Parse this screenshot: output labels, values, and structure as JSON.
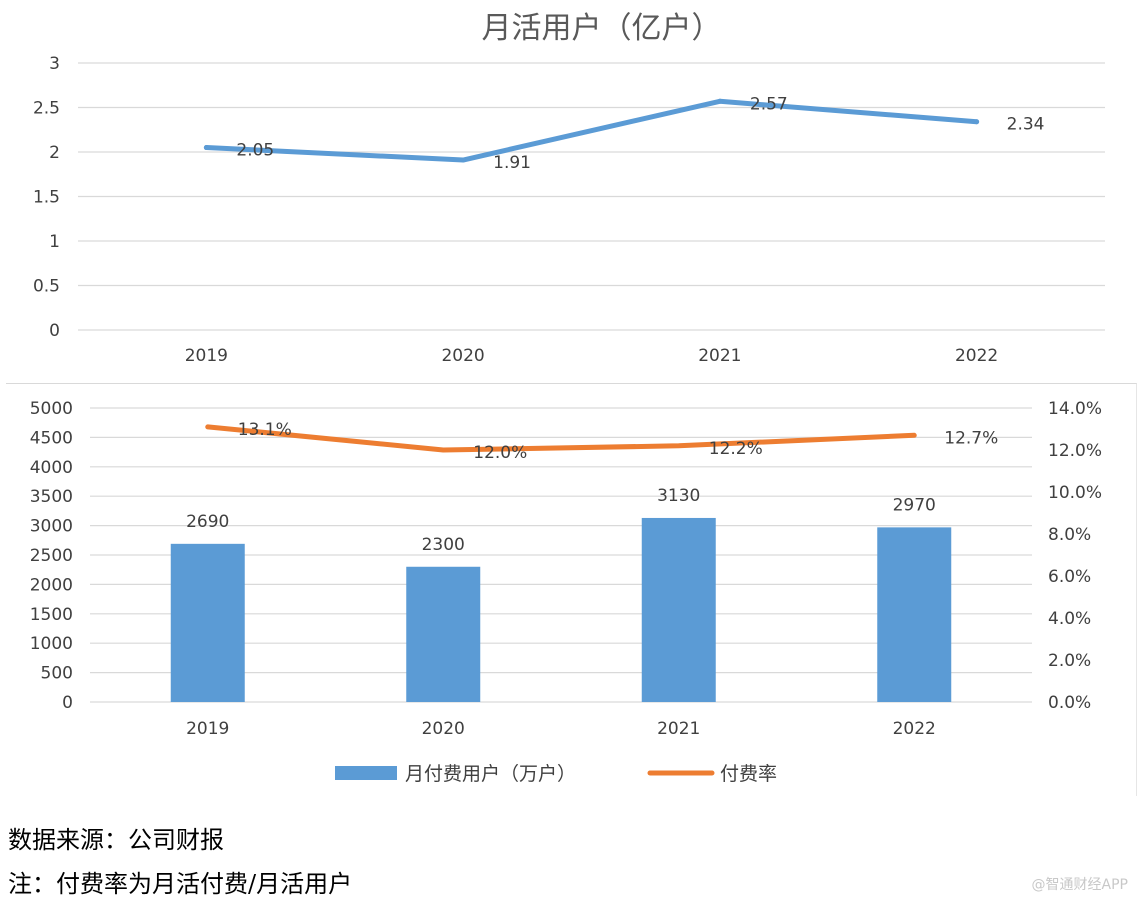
{
  "chart_data": [
    {
      "type": "line",
      "title": "月活用户（亿户）",
      "categories": [
        "2019",
        "2020",
        "2021",
        "2022"
      ],
      "series": [
        {
          "name": "月活用户（亿户）",
          "values": [
            2.05,
            1.91,
            2.57,
            2.34
          ],
          "color": "#5b9bd5"
        }
      ],
      "data_labels": [
        "2.05",
        "1.91",
        "2.57",
        "2.34"
      ],
      "y_ticks": [
        "0",
        "0.5",
        "1",
        "1.5",
        "2",
        "2.5",
        "3"
      ],
      "ylim": [
        0,
        3
      ],
      "grid": true
    },
    {
      "type": "bar",
      "title": "",
      "categories": [
        "2019",
        "2020",
        "2021",
        "2022"
      ],
      "series": [
        {
          "name": "月付费用户（万户）",
          "kind": "bar",
          "axis": "left",
          "values": [
            2690,
            2300,
            3130,
            2970
          ],
          "color": "#5b9bd5",
          "labels": [
            "2690",
            "2300",
            "3130",
            "2970"
          ]
        },
        {
          "name": "付费率",
          "kind": "line",
          "axis": "right",
          "values": [
            13.1,
            12.0,
            12.2,
            12.7
          ],
          "color": "#ed7d31",
          "labels": [
            "13.1%",
            "12.0%",
            "12.2%",
            "12.7%"
          ]
        }
      ],
      "y_left_ticks": [
        "0",
        "500",
        "1000",
        "1500",
        "2000",
        "2500",
        "3000",
        "3500",
        "4000",
        "4500",
        "5000"
      ],
      "y_left_lim": [
        0,
        5000
      ],
      "y_right_ticks": [
        "0.0%",
        "2.0%",
        "4.0%",
        "6.0%",
        "8.0%",
        "10.0%",
        "12.0%",
        "14.0%"
      ],
      "y_right_lim": [
        0,
        14
      ],
      "legend": [
        "月付费用户（万户）",
        "付费率"
      ],
      "legend_position": "bottom",
      "grid": true
    }
  ],
  "footer": {
    "source": "数据来源：公司财报",
    "note": "注：付费率为月活付费/月活用户",
    "watermark": "@智通财经APP"
  }
}
